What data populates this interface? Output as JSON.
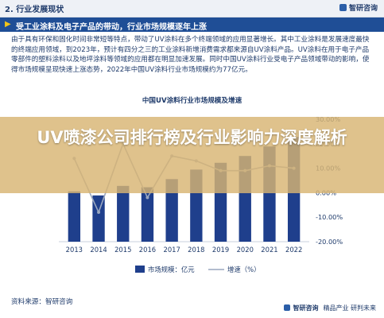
{
  "header": {
    "section_title": "2. 行业发展现状",
    "brand": "智研咨询"
  },
  "subhead": {
    "flag": "▶",
    "text": "受工业涂料及电子产品的带动，行业市场规模逐年上涨"
  },
  "paragraph": "由于具有环保和固化时间非常短等特点，带动了UV涂料在多个终端领域的应用显著增长。其中工业涂料是发展速度最快的终端应用领域，到2023年，预计有四分之三的工业涂料新增消费需求都来源自UV涂料产品。UV涂料在用于电子产品零部件的塑料涂料以及地坪涂料等领域的应用都在明显加速发展。同时中国UV涂料行业受电子产品领域带动的影响，使得市场规模呈现快速上涨态势，2022年中国UV涂料行业市场规模约为77亿元。",
  "chart_data": {
    "type": "bar",
    "title": "中国UV涂料行业市场规模及增速",
    "categories": [
      "2013",
      "2014",
      "2015",
      "2016",
      "2017",
      "2018",
      "2019",
      "2020",
      "2021",
      "2022"
    ],
    "series": [
      {
        "name": "市场规模：亿元",
        "type": "bar",
        "axis": "left",
        "color": "#1f3f8c",
        "values": [
          37,
          34,
          41,
          40,
          46,
          53,
          58,
          63,
          70,
          77
        ]
      },
      {
        "name": "增速（%）",
        "type": "line",
        "axis": "right",
        "color": "#9aa7bf",
        "values": [
          14.0,
          -8.0,
          20.0,
          -2.0,
          15.0,
          13.0,
          9.0,
          9.0,
          11.0,
          10.0
        ]
      }
    ],
    "yright_ticks": [
      "30.00%",
      "20.00%",
      "10.00%",
      "0.00%",
      "-10.00%",
      "-20.00%"
    ],
    "yright_lim": [
      -20,
      30
    ],
    "yleft_lim": [
      0,
      90
    ],
    "legend": "bottom",
    "grid": false
  },
  "banner_title": "UV喷漆公司排行榜及行业影响力深度解析",
  "footer": {
    "source": "资料来源：智研咨询",
    "brand": "智研咨询",
    "slogan": "精品产业 研判未来"
  }
}
